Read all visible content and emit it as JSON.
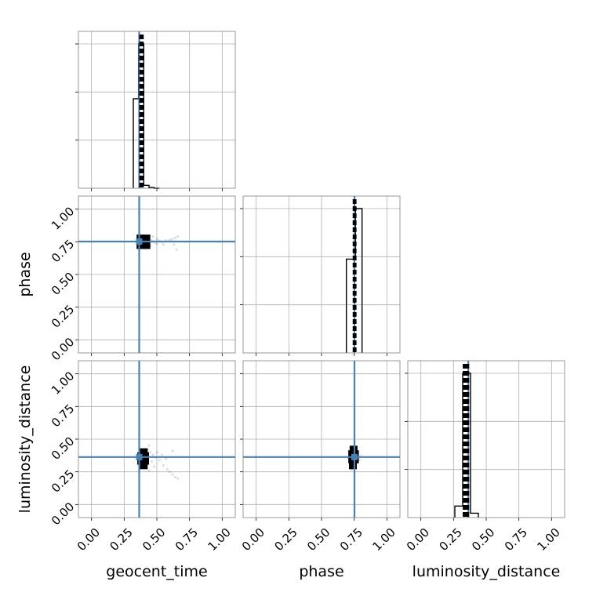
{
  "chart_data": {
    "type": "corner",
    "parameters": [
      "geocent_time",
      "phase",
      "luminosity_distance"
    ],
    "axis_range": [
      -0.1,
      1.1
    ],
    "tick_values": [
      0.0,
      0.25,
      0.5,
      0.75,
      1.0
    ],
    "tick_labels": [
      "0.00",
      "0.25",
      "0.50",
      "0.75",
      "1.00"
    ],
    "grid": true,
    "colors": {
      "truth": "#4682b4",
      "histogram": "#000000",
      "frame": "#7f7f7f",
      "grid": "#b0b0b0"
    },
    "truth_values": {
      "geocent_time": 0.365,
      "phase": 0.752,
      "luminosity_distance": 0.363
    },
    "histograms": {
      "geocent_time": {
        "bin_edges": [
          0.32,
          0.36,
          0.4,
          0.44,
          0.48,
          0.52
        ],
        "counts": [
          0.62,
          1.0,
          0.02,
          0.005,
          0.0
        ],
        "quantile_lines": [
          0.375,
          0.39
        ]
      },
      "phase": {
        "bin_edges": [
          0.69,
          0.76,
          0.81
        ],
        "counts": [
          0.65,
          1.0
        ],
        "quantile_lines": [
          0.748,
          0.758
        ]
      },
      "luminosity_distance": {
        "bin_edges": [
          0.26,
          0.32,
          0.38,
          0.44
        ],
        "counts": [
          0.08,
          1.0,
          0.03
        ],
        "quantile_lines": [
          0.33,
          0.345,
          0.36
        ]
      }
    },
    "panels_2d": [
      {
        "x": "geocent_time",
        "y": "phase",
        "dense_cells": [
          [
            0.375,
            0.775
          ],
          [
            0.42,
            0.775
          ],
          [
            0.375,
            0.725
          ],
          [
            0.42,
            0.725
          ]
        ],
        "samples": [
          [
            0.44,
            0.75
          ],
          [
            0.46,
            0.76
          ],
          [
            0.48,
            0.745
          ],
          [
            0.5,
            0.735
          ],
          [
            0.52,
            0.76
          ],
          [
            0.54,
            0.75
          ],
          [
            0.57,
            0.76
          ],
          [
            0.6,
            0.765
          ],
          [
            0.62,
            0.77
          ],
          [
            0.64,
            0.78
          ],
          [
            0.66,
            0.79
          ],
          [
            0.63,
            0.73
          ],
          [
            0.65,
            0.69
          ],
          [
            0.45,
            0.72
          ],
          [
            0.47,
            0.79
          ],
          [
            0.43,
            0.77
          ],
          [
            0.5,
            0.77
          ],
          [
            0.55,
            0.73
          ]
        ]
      },
      {
        "x": "geocent_time",
        "y": "luminosity_distance",
        "dense_cells": [
          [
            0.38,
            0.37
          ],
          [
            0.41,
            0.37
          ],
          [
            0.38,
            0.335
          ],
          [
            0.41,
            0.335
          ],
          [
            0.4,
            0.4
          ],
          [
            0.4,
            0.3
          ]
        ],
        "samples": [
          [
            0.43,
            0.42
          ],
          [
            0.45,
            0.4
          ],
          [
            0.47,
            0.38
          ],
          [
            0.49,
            0.36
          ],
          [
            0.52,
            0.34
          ],
          [
            0.55,
            0.3
          ],
          [
            0.58,
            0.27
          ],
          [
            0.6,
            0.25
          ],
          [
            0.62,
            0.23
          ],
          [
            0.64,
            0.21
          ],
          [
            0.66,
            0.2
          ],
          [
            0.44,
            0.45
          ],
          [
            0.46,
            0.33
          ],
          [
            0.5,
            0.4
          ],
          [
            0.48,
            0.29
          ],
          [
            0.42,
            0.28
          ],
          [
            0.54,
            0.38
          ],
          [
            0.57,
            0.35
          ],
          [
            0.62,
            0.41
          ],
          [
            0.44,
            0.26
          ]
        ]
      },
      {
        "x": "phase",
        "y": "luminosity_distance",
        "dense_cells": [
          [
            0.735,
            0.385
          ],
          [
            0.755,
            0.385
          ],
          [
            0.735,
            0.345
          ],
          [
            0.755,
            0.345
          ],
          [
            0.74,
            0.3
          ],
          [
            0.745,
            0.42
          ]
        ],
        "samples": [
          [
            0.71,
            0.4
          ],
          [
            0.72,
            0.32
          ],
          [
            0.78,
            0.39
          ],
          [
            0.79,
            0.34
          ],
          [
            0.77,
            0.43
          ],
          [
            0.73,
            0.27
          ],
          [
            0.76,
            0.29
          ],
          [
            0.7,
            0.36
          ],
          [
            0.8,
            0.37
          ],
          [
            0.75,
            0.44
          ]
        ]
      }
    ]
  }
}
